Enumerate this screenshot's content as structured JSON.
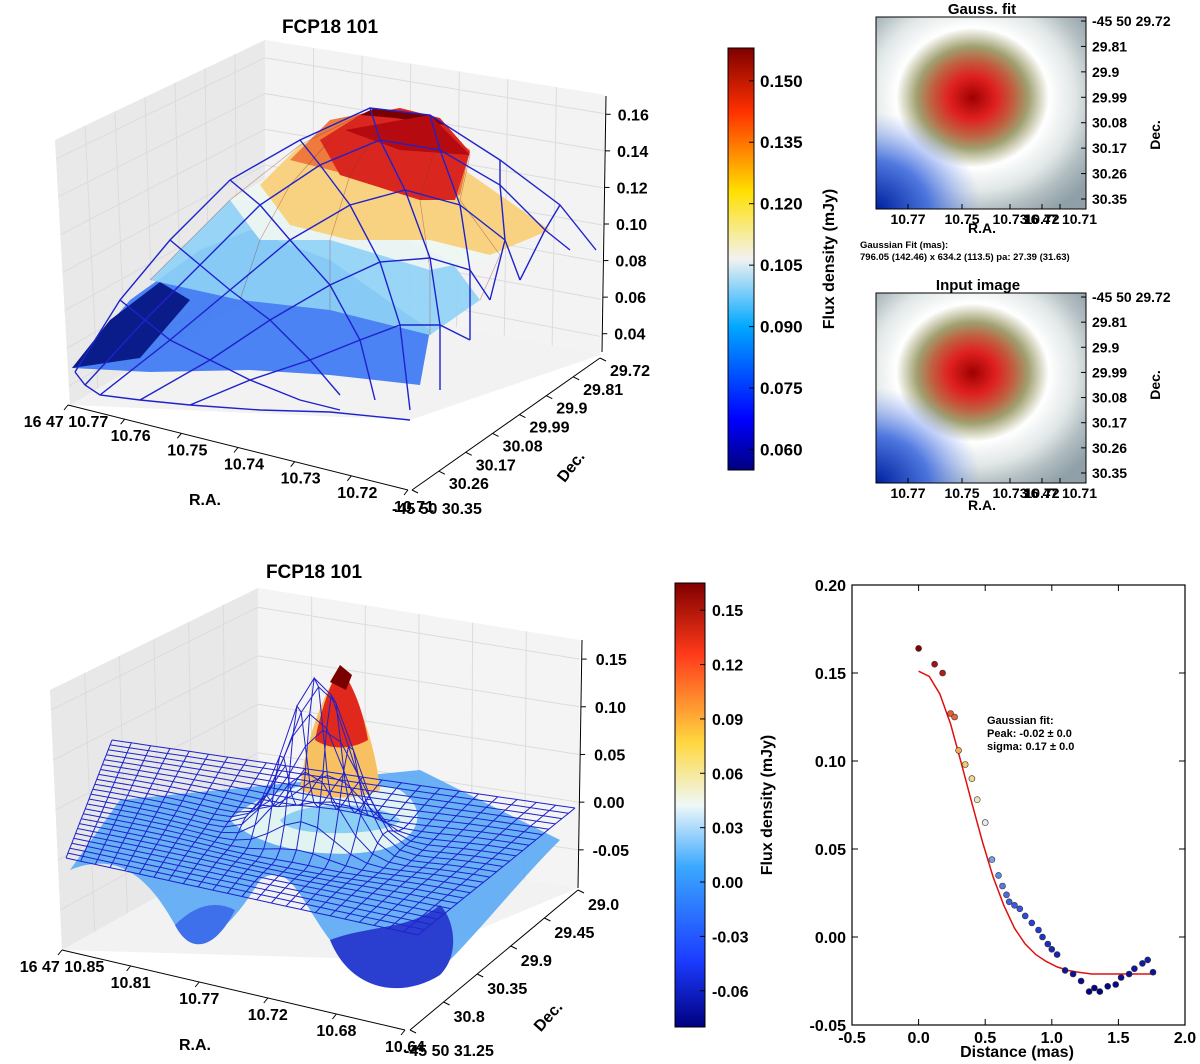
{
  "chart_data": [
    {
      "type": "surface3d",
      "title": "FCP18 101",
      "xlabel": "R.A.",
      "ylabel": "Dec.",
      "x_ticks": [
        "16 47 10.77",
        "10.76",
        "10.75",
        "10.74",
        "10.73",
        "10.72",
        "10.71"
      ],
      "y_ticks": [
        "29.72",
        "29.81",
        "29.9",
        "29.99",
        "30.08",
        "30.17",
        "30.26",
        "-45 50 30.35"
      ],
      "z_ticks": [
        0.04,
        0.06,
        0.08,
        0.1,
        0.12,
        0.14,
        0.16
      ],
      "zlim": [
        0.03,
        0.17
      ],
      "peak": 0.16,
      "colorbar": {
        "label": "Flux density (mJy)",
        "min": 0.055,
        "max": 0.158,
        "ticks": [
          0.06,
          0.075,
          0.09,
          0.105,
          0.12,
          0.135,
          0.15
        ]
      }
    },
    {
      "type": "heatmap",
      "title": "Gauss. fit",
      "xlabel": "R.A.",
      "ylabel": "Dec.",
      "x_ticks": [
        "10.77",
        "10.75",
        "10.73",
        "10.72",
        "16 47 10.71"
      ],
      "y_ticks": [
        "-45 50 29.72",
        "29.81",
        "29.9",
        "29.99",
        "30.08",
        "30.17",
        "30.26",
        "30.35"
      ],
      "fit_label": "Gaussian Fit (mas):",
      "fit_values": "796.05 (142.46) x 634.2 (113.5) pa: 27.39 (31.63)"
    },
    {
      "type": "heatmap",
      "title": "Input image",
      "xlabel": "R.A.",
      "ylabel": "Dec.",
      "x_ticks": [
        "10.77",
        "10.75",
        "10.73",
        "10.72",
        "16 47 10.71"
      ],
      "y_ticks": [
        "-45 50 29.72",
        "29.81",
        "29.9",
        "29.99",
        "30.08",
        "30.17",
        "30.26",
        "30.35"
      ]
    },
    {
      "type": "surface3d",
      "title": "FCP18 101",
      "xlabel": "R.A.",
      "ylabel": "Dec.",
      "x_ticks": [
        "16 47 10.85",
        "10.81",
        "10.77",
        "10.72",
        "10.68",
        "10.64"
      ],
      "y_ticks": [
        "29.0",
        "29.45",
        "29.9",
        "30.35",
        "30.8",
        "-45 50 31.25"
      ],
      "z_ticks": [
        -0.05,
        0.0,
        0.05,
        0.1,
        0.15
      ],
      "zlim": [
        -0.09,
        0.17
      ],
      "colorbar": {
        "label": "Flux density (mJy)",
        "min": -0.08,
        "max": 0.165,
        "ticks": [
          -0.06,
          -0.03,
          0.0,
          0.03,
          0.06,
          0.09,
          0.12,
          0.15
        ]
      }
    },
    {
      "type": "scatter",
      "xlabel": "Distance (mas)",
      "ylabel": "",
      "xlim": [
        -0.5,
        2.0
      ],
      "ylim": [
        -0.05,
        0.2
      ],
      "x_ticks": [
        -0.5,
        0.0,
        0.5,
        1.0,
        1.5,
        2.0
      ],
      "y_ticks": [
        -0.05,
        0.0,
        0.05,
        0.1,
        0.15,
        0.2
      ],
      "annotation": {
        "title": "Gaussian fit:",
        "peak": "Peak: -0.02 ± 0.0",
        "sigma": "sigma: 0.17 ± 0.0"
      },
      "points": [
        [
          0.0,
          0.164
        ],
        [
          0.12,
          0.155
        ],
        [
          0.18,
          0.15
        ],
        [
          0.24,
          0.127
        ],
        [
          0.27,
          0.125
        ],
        [
          0.3,
          0.106
        ],
        [
          0.35,
          0.098
        ],
        [
          0.4,
          0.09
        ],
        [
          0.44,
          0.078
        ],
        [
          0.5,
          0.065
        ],
        [
          0.55,
          0.044
        ],
        [
          0.6,
          0.035
        ],
        [
          0.63,
          0.029
        ],
        [
          0.66,
          0.024
        ],
        [
          0.68,
          0.02
        ],
        [
          0.72,
          0.018
        ],
        [
          0.76,
          0.016
        ],
        [
          0.8,
          0.012
        ],
        [
          0.85,
          0.008
        ],
        [
          0.9,
          0.004
        ],
        [
          0.93,
          0.0
        ],
        [
          0.97,
          -0.004
        ],
        [
          1.0,
          -0.007
        ],
        [
          1.04,
          -0.01
        ],
        [
          1.1,
          -0.019
        ],
        [
          1.16,
          -0.021
        ],
        [
          1.22,
          -0.025
        ],
        [
          1.28,
          -0.031
        ],
        [
          1.32,
          -0.029
        ],
        [
          1.36,
          -0.031
        ],
        [
          1.42,
          -0.028
        ],
        [
          1.48,
          -0.027
        ],
        [
          1.52,
          -0.023
        ],
        [
          1.58,
          -0.021
        ],
        [
          1.62,
          -0.018
        ],
        [
          1.68,
          -0.015
        ],
        [
          1.72,
          -0.013
        ],
        [
          1.76,
          -0.02
        ]
      ],
      "fit_curve": {
        "name": "Gaussian fit",
        "x": [
          0.0,
          0.08,
          0.16,
          0.24,
          0.32,
          0.4,
          0.48,
          0.56,
          0.64,
          0.72,
          0.8,
          0.88,
          0.96,
          1.04,
          1.12,
          1.2,
          1.3,
          1.4,
          1.5,
          1.6,
          1.7,
          1.78
        ],
        "y": [
          0.151,
          0.148,
          0.138,
          0.121,
          0.099,
          0.076,
          0.054,
          0.034,
          0.018,
          0.005,
          -0.004,
          -0.01,
          -0.014,
          -0.017,
          -0.019,
          -0.02,
          -0.021,
          -0.021,
          -0.021,
          -0.021,
          -0.021,
          -0.021
        ]
      }
    }
  ]
}
